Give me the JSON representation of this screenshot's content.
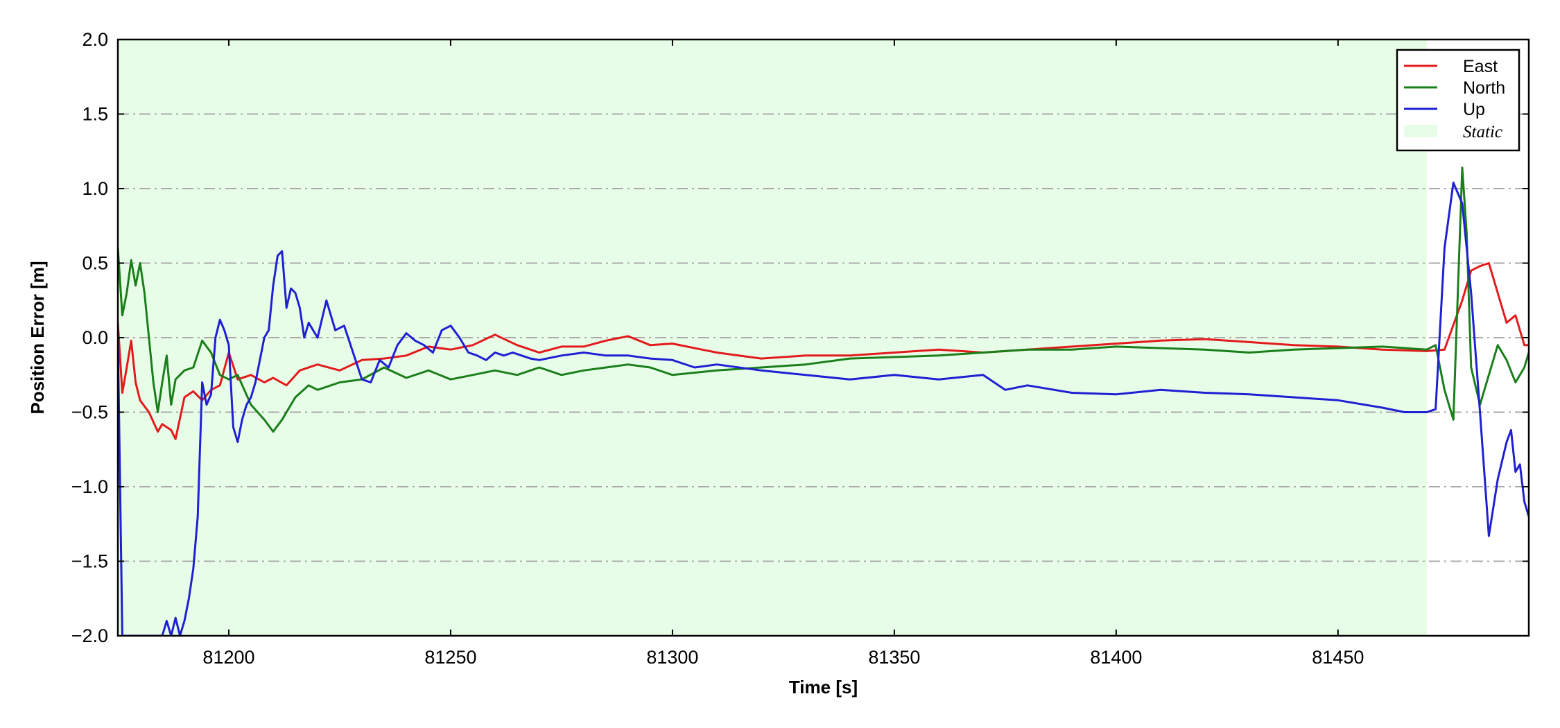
{
  "chart_data": {
    "type": "line",
    "title": "",
    "xlabel": "Time [s]",
    "ylabel": "Position Error [m]",
    "xlim": [
      81175,
      81493
    ],
    "ylim": [
      -2.0,
      2.0
    ],
    "xticks": [
      81200,
      81250,
      81300,
      81350,
      81400,
      81450
    ],
    "xtick_labels": [
      "81200",
      "81250",
      "81300",
      "81350",
      "81400",
      "81450"
    ],
    "yticks": [
      -2.0,
      -1.5,
      -1.0,
      -0.5,
      0.0,
      0.5,
      1.0,
      1.5,
      2.0
    ],
    "ytick_labels": [
      "−2.0",
      "−1.5",
      "−1.0",
      "−0.5",
      "0.0",
      "0.5",
      "1.0",
      "1.5",
      "2.0"
    ],
    "grid": "horizontal dash-dot",
    "legend_position": "top-right",
    "static_region": {
      "label": "Static",
      "x_start": 81175,
      "x_end": 81470,
      "color": "#e8fde8"
    },
    "series": [
      {
        "name": "East",
        "color": "#e31a1c",
        "x": [
          81175,
          81176,
          81177,
          81178,
          81179,
          81180,
          81182,
          81184,
          81185,
          81187,
          81188,
          81190,
          81192,
          81194,
          81196,
          81198,
          81200,
          81202,
          81205,
          81208,
          81210,
          81213,
          81216,
          81220,
          81225,
          81230,
          81235,
          81240,
          81245,
          81250,
          81255,
          81260,
          81265,
          81270,
          81275,
          81280,
          81285,
          81290,
          81295,
          81300,
          81310,
          81320,
          81330,
          81340,
          81350,
          81360,
          81370,
          81380,
          81390,
          81400,
          81410,
          81420,
          81430,
          81440,
          81450,
          81460,
          81470,
          81474,
          81478,
          81480,
          81482,
          81484,
          81486,
          81488,
          81490,
          81492,
          81493
        ],
        "y": [
          0.1,
          -0.37,
          -0.2,
          -0.02,
          -0.3,
          -0.42,
          -0.5,
          -0.63,
          -0.58,
          -0.62,
          -0.68,
          -0.4,
          -0.36,
          -0.42,
          -0.35,
          -0.32,
          -0.1,
          -0.28,
          -0.25,
          -0.3,
          -0.27,
          -0.32,
          -0.22,
          -0.18,
          -0.22,
          -0.15,
          -0.14,
          -0.12,
          -0.06,
          -0.08,
          -0.05,
          0.02,
          -0.05,
          -0.1,
          -0.06,
          -0.06,
          -0.02,
          0.01,
          -0.05,
          -0.04,
          -0.1,
          -0.14,
          -0.12,
          -0.12,
          -0.1,
          -0.08,
          -0.1,
          -0.08,
          -0.06,
          -0.04,
          -0.02,
          -0.01,
          -0.03,
          -0.05,
          -0.06,
          -0.08,
          -0.09,
          -0.08,
          0.25,
          0.45,
          0.48,
          0.5,
          0.3,
          0.1,
          0.15,
          -0.05,
          -0.05
        ]
      },
      {
        "name": "North",
        "color": "#1a7f1a",
        "x": [
          81175,
          81176,
          81177,
          81178,
          81179,
          81180,
          81181,
          81182,
          81183,
          81184,
          81185,
          81186,
          81187,
          81188,
          81189,
          81190,
          81192,
          81194,
          81196,
          81198,
          81200,
          81202,
          81205,
          81208,
          81210,
          81212,
          81215,
          81218,
          81220,
          81225,
          81230,
          81235,
          81240,
          81245,
          81250,
          81255,
          81260,
          81265,
          81270,
          81275,
          81280,
          81285,
          81290,
          81295,
          81300,
          81310,
          81320,
          81330,
          81340,
          81350,
          81360,
          81370,
          81380,
          81390,
          81400,
          81410,
          81420,
          81430,
          81440,
          81450,
          81460,
          81470,
          81472,
          81474,
          81476,
          81478,
          81479,
          81480,
          81482,
          81484,
          81486,
          81488,
          81490,
          81492,
          81493
        ],
        "y": [
          0.6,
          0.15,
          0.3,
          0.52,
          0.35,
          0.5,
          0.3,
          0.0,
          -0.3,
          -0.5,
          -0.3,
          -0.12,
          -0.45,
          -0.28,
          -0.25,
          -0.22,
          -0.2,
          -0.02,
          -0.1,
          -0.25,
          -0.28,
          -0.25,
          -0.45,
          -0.55,
          -0.63,
          -0.55,
          -0.4,
          -0.32,
          -0.35,
          -0.3,
          -0.28,
          -0.2,
          -0.27,
          -0.22,
          -0.28,
          -0.25,
          -0.22,
          -0.25,
          -0.2,
          -0.25,
          -0.22,
          -0.2,
          -0.18,
          -0.2,
          -0.25,
          -0.22,
          -0.2,
          -0.18,
          -0.14,
          -0.13,
          -0.12,
          -0.1,
          -0.08,
          -0.08,
          -0.06,
          -0.07,
          -0.08,
          -0.1,
          -0.08,
          -0.07,
          -0.06,
          -0.08,
          -0.05,
          -0.35,
          -0.55,
          1.14,
          0.7,
          -0.2,
          -0.45,
          -0.25,
          -0.05,
          -0.15,
          -0.3,
          -0.2,
          -0.1
        ]
      },
      {
        "name": "Up",
        "color": "#1f1fd4",
        "x": [
          81175,
          81176,
          81177,
          81178,
          81179,
          81180,
          81181,
          81182,
          81183,
          81184,
          81185,
          81186,
          81187,
          81188,
          81189,
          81190,
          81191,
          81192,
          81193,
          81194,
          81195,
          81196,
          81197,
          81198,
          81199,
          81200,
          81201,
          81202,
          81203,
          81204,
          81205,
          81206,
          81207,
          81208,
          81209,
          81210,
          81211,
          81212,
          81213,
          81214,
          81215,
          81216,
          81217,
          81218,
          81219,
          81220,
          81222,
          81224,
          81226,
          81228,
          81230,
          81232,
          81234,
          81236,
          81238,
          81240,
          81242,
          81244,
          81246,
          81248,
          81250,
          81252,
          81254,
          81256,
          81258,
          81260,
          81262,
          81264,
          81266,
          81268,
          81270,
          81275,
          81280,
          81285,
          81290,
          81295,
          81300,
          81305,
          81310,
          81320,
          81330,
          81340,
          81350,
          81360,
          81370,
          81375,
          81380,
          81390,
          81400,
          81410,
          81420,
          81430,
          81440,
          81450,
          81460,
          81465,
          81470,
          81472,
          81474,
          81476,
          81478,
          81480,
          81482,
          81484,
          81486,
          81488,
          81489,
          81490,
          81491,
          81492,
          81493
        ],
        "y": [
          0.0,
          -2.0,
          -2.0,
          -2.0,
          -2.0,
          -2.0,
          -2.0,
          -2.0,
          -2.0,
          -2.0,
          -2.0,
          -1.9,
          -2.0,
          -1.88,
          -2.0,
          -1.9,
          -1.75,
          -1.55,
          -1.2,
          -0.3,
          -0.45,
          -0.38,
          0.0,
          0.12,
          0.05,
          -0.05,
          -0.6,
          -0.7,
          -0.55,
          -0.45,
          -0.4,
          -0.3,
          -0.15,
          0.0,
          0.05,
          0.35,
          0.55,
          0.58,
          0.2,
          0.33,
          0.3,
          0.2,
          0.0,
          0.1,
          0.05,
          0.0,
          0.25,
          0.05,
          0.08,
          -0.1,
          -0.28,
          -0.3,
          -0.15,
          -0.2,
          -0.05,
          0.03,
          -0.02,
          -0.05,
          -0.1,
          0.05,
          0.08,
          0.0,
          -0.1,
          -0.12,
          -0.15,
          -0.1,
          -0.12,
          -0.1,
          -0.12,
          -0.14,
          -0.15,
          -0.12,
          -0.1,
          -0.12,
          -0.12,
          -0.14,
          -0.15,
          -0.2,
          -0.18,
          -0.22,
          -0.25,
          -0.28,
          -0.25,
          -0.28,
          -0.25,
          -0.35,
          -0.32,
          -0.37,
          -0.38,
          -0.35,
          -0.37,
          -0.38,
          -0.4,
          -0.42,
          -0.47,
          -0.5,
          -0.5,
          -0.48,
          0.6,
          1.04,
          0.9,
          0.3,
          -0.5,
          -1.33,
          -0.95,
          -0.7,
          -0.62,
          -0.9,
          -0.85,
          -1.1,
          -1.2
        ]
      }
    ]
  }
}
